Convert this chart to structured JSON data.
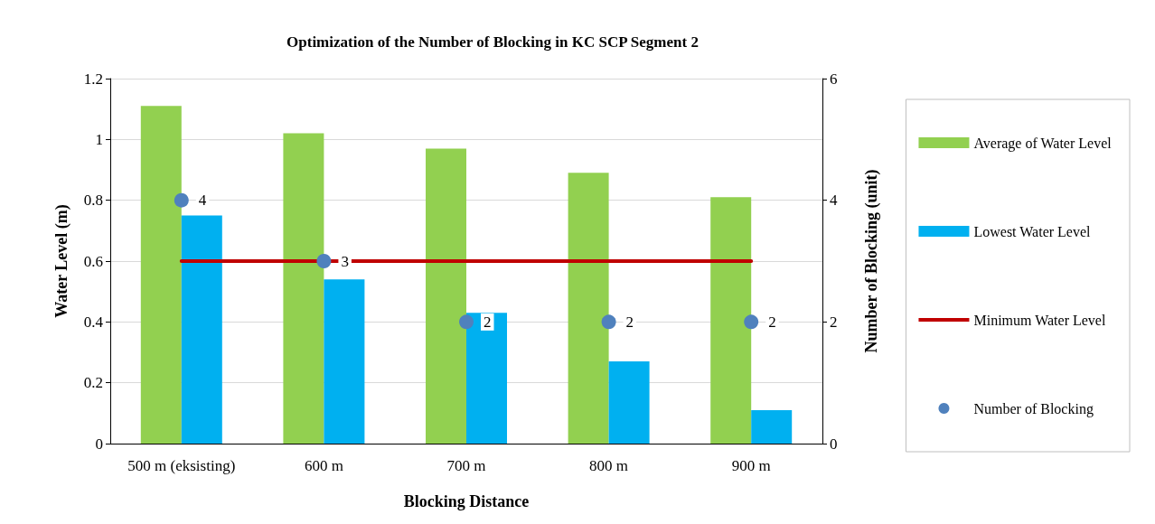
{
  "chart_data": {
    "type": "bar",
    "title": "Optimization of the Number of Blocking in KC SCP Segment 2",
    "xlabel": "Blocking Distance",
    "ylabel": "Water Level (m)",
    "y2label": "Number of Blocking (unit)",
    "categories": [
      "500 m (eksisting)",
      "600 m",
      "700 m",
      "800 m",
      "900 m"
    ],
    "series": [
      {
        "name": "Average of Water Level",
        "color": "#92d050",
        "values": [
          1.11,
          1.02,
          0.97,
          0.89,
          0.81
        ]
      },
      {
        "name": "Lowest Water Level",
        "color": "#00b0f0",
        "values": [
          0.75,
          0.54,
          0.43,
          0.27,
          0.11
        ]
      },
      {
        "name": "Minimum Water Level",
        "type": "line",
        "color": "#c00000",
        "marker": "none",
        "values": [
          0.6,
          0.6,
          0.6,
          0.6,
          0.6
        ]
      },
      {
        "name": "Number of Blocking",
        "type": "scatter",
        "axis": "y2",
        "color": "#4f81bd",
        "marker": "circle",
        "values": [
          4,
          3,
          2,
          2,
          2
        ],
        "value_labels": [
          "4",
          "3",
          "2",
          "2",
          "2"
        ]
      }
    ],
    "ylim": [
      0,
      1.2
    ],
    "yticks": [
      0,
      0.2,
      0.4,
      0.6,
      0.8,
      1,
      1.2
    ],
    "y2lim": [
      0,
      6
    ],
    "y2ticks": [
      0,
      2,
      4,
      6
    ],
    "grid": "y",
    "legend": "right"
  }
}
